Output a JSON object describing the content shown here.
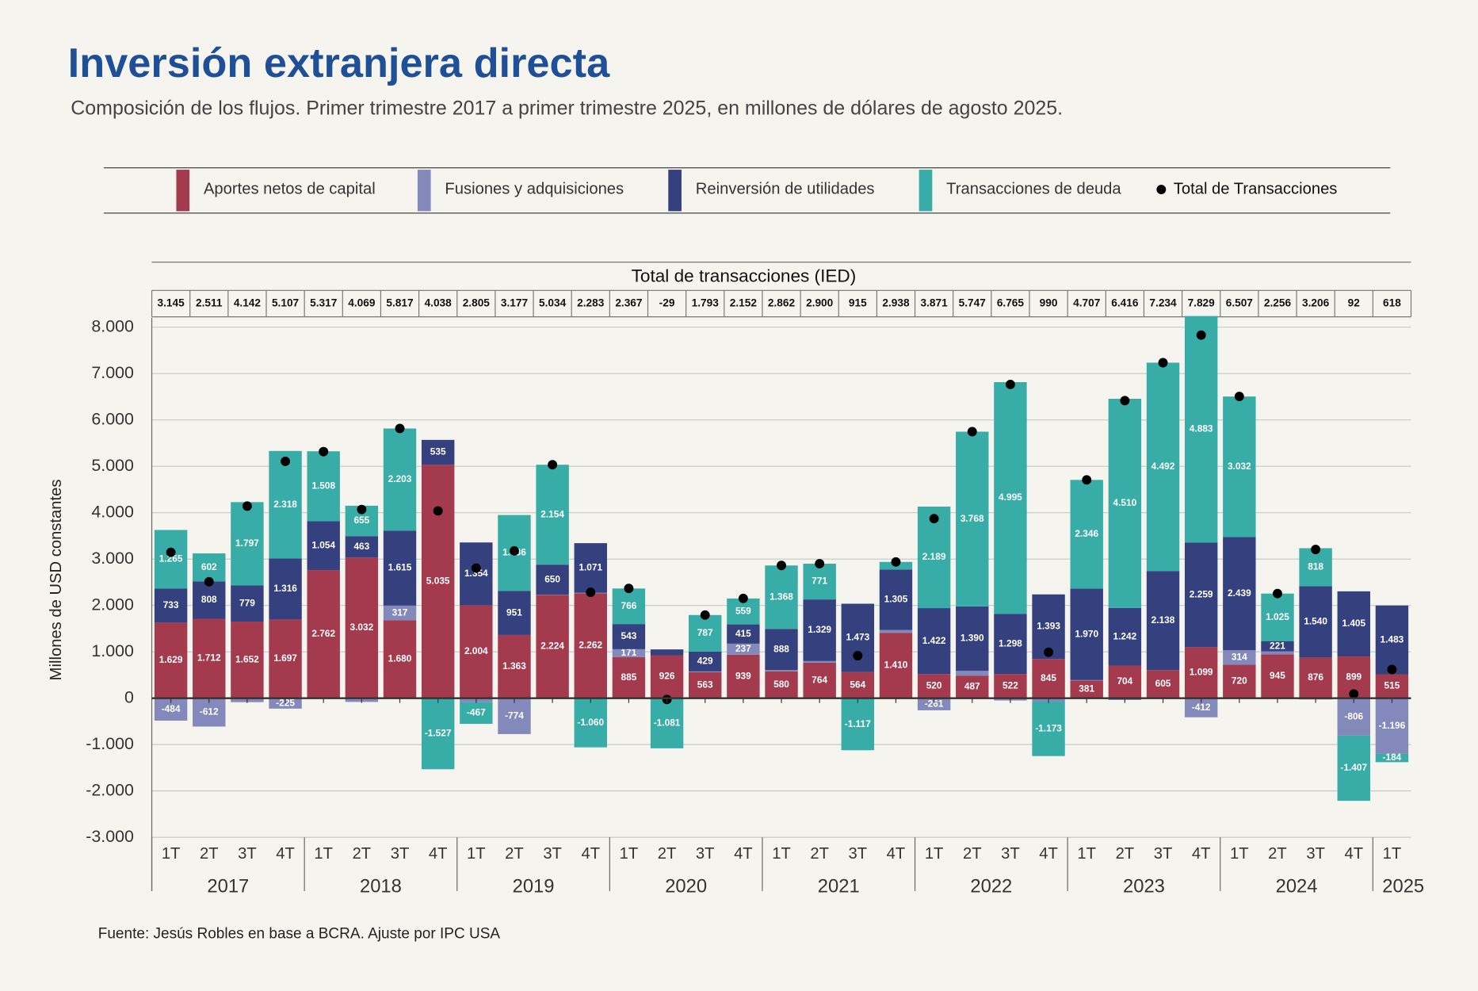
{
  "chart_data": {
    "type": "stacked-bar",
    "title": "Inversión extranjera directa",
    "subtitle": "Composición de los flujos. Primer trimestre 2017 a primer trimestre 2025, en millones de dólares de agosto 2025.",
    "y_label": "Millones de USD constantes",
    "table_title": "Total de transacciones (IED)",
    "source": "Fuente: Jesús Robles en base a BCRA. Ajuste por IPC USA",
    "categories": [
      "1T",
      "2T",
      "3T",
      "4T",
      "1T",
      "2T",
      "3T",
      "4T",
      "1T",
      "2T",
      "3T",
      "4T",
      "1T",
      "2T",
      "3T",
      "4T",
      "1T",
      "2T",
      "3T",
      "4T",
      "1T",
      "2T",
      "3T",
      "4T",
      "1T",
      "2T",
      "3T",
      "4T",
      "1T",
      "2T",
      "3T",
      "4T",
      "1T"
    ],
    "years": [
      "2017",
      null,
      null,
      null,
      "2018",
      null,
      null,
      null,
      "2019",
      null,
      null,
      null,
      "2020",
      null,
      null,
      null,
      "2021",
      null,
      null,
      null,
      "2022",
      null,
      null,
      null,
      "2023",
      null,
      null,
      null,
      "2024",
      null,
      null,
      null,
      "2025"
    ],
    "ylim": [
      -3000,
      8000
    ],
    "yticks": [
      {
        "value": -3000,
        "label": "-3.000"
      },
      {
        "value": -2000,
        "label": "-2.000"
      },
      {
        "value": -1000,
        "label": "-1.000"
      },
      0,
      {
        "value": 1000,
        "label": "1.000"
      },
      {
        "value": 2000,
        "label": "2.000"
      },
      {
        "value": 3000,
        "label": "3.000"
      },
      {
        "value": 4000,
        "label": "4.000"
      },
      {
        "value": 5000,
        "label": "5.000"
      },
      {
        "value": 6000,
        "label": "6.000"
      },
      {
        "value": 7000,
        "label": "7.000"
      },
      {
        "value": 8000,
        "label": "8.000"
      }
    ],
    "grid": true,
    "series": [
      {
        "name": "Aportes netos de capital",
        "color": "#a33a4e",
        "values": [
          1629,
          1712,
          1652,
          1697,
          2762,
          3032,
          1680,
          5035,
          2004,
          1363,
          2224,
          2262,
          885,
          926,
          563,
          939,
          580,
          764,
          564,
          1410,
          520,
          487,
          522,
          845,
          381,
          704,
          605,
          1099,
          720,
          945,
          876,
          899,
          515
        ],
        "value_labels": [
          "1.629",
          "1.712",
          "1.652",
          "1.697",
          "2.762",
          "3.032",
          "1.680",
          "5.035",
          "2.004",
          "1.363",
          "2.224",
          "2.262",
          "885",
          "926",
          "563",
          "939",
          "580",
          "764",
          "564",
          "1.410",
          "520",
          "487",
          "522",
          "845",
          "381",
          "704",
          "605",
          "1.099",
          "720",
          "945",
          "876",
          "899",
          "515"
        ]
      },
      {
        "name": "Fusiones y adquisiciones",
        "color": "#8389bb",
        "values": [
          -484,
          -612,
          -86,
          -225,
          -7,
          -81,
          317,
          -5,
          -86,
          -774,
          6,
          10,
          171,
          0,
          14,
          237,
          26,
          36,
          -5,
          60,
          -261,
          102,
          -50,
          -75,
          10,
          -40,
          -1,
          -412,
          314,
          65,
          -28,
          -806,
          -1196
        ],
        "value_labels": [
          "-484",
          "-612",
          null,
          "-225",
          null,
          null,
          "317",
          null,
          null,
          "-774",
          null,
          null,
          "171",
          null,
          null,
          "237",
          null,
          null,
          null,
          null,
          "-261",
          null,
          null,
          null,
          null,
          null,
          null,
          "-412",
          "314",
          null,
          null,
          "-806",
          "-1.196"
        ]
      },
      {
        "name": "Reinversión de utilidades",
        "color": "#35407f",
        "values": [
          733,
          808,
          779,
          1316,
          1054,
          463,
          1615,
          535,
          1354,
          951,
          650,
          1071,
          543,
          126,
          429,
          415,
          888,
          1329,
          1473,
          1305,
          1422,
          1390,
          1298,
          1393,
          1970,
          1242,
          2138,
          2259,
          2439,
          221,
          1540,
          1405,
          1483
        ],
        "value_labels": [
          "733",
          "808",
          "779",
          "1.316",
          "1.054",
          "463",
          "1.615",
          "535",
          "1.354",
          "951",
          "650",
          "1.071",
          "543",
          null,
          "429",
          "415",
          "888",
          "1.329",
          "1.473",
          "1.305",
          "1.422",
          "1.390",
          "1.298",
          "1.393",
          "1.970",
          "1.242",
          "2.138",
          "2.259",
          "2.439",
          "221",
          "1.540",
          "1.405",
          "1.483"
        ]
      },
      {
        "name": "Transacciones de deuda",
        "color": "#38aca7",
        "values": [
          1265,
          602,
          1797,
          2318,
          1508,
          655,
          2203,
          -1527,
          -467,
          1636,
          2154,
          -1060,
          766,
          -1081,
          787,
          559,
          1368,
          771,
          -1117,
          163,
          2189,
          3768,
          4995,
          -1173,
          2346,
          4510,
          4492,
          4883,
          3032,
          1025,
          818,
          -1407,
          -184
        ],
        "value_labels": [
          "1.265",
          "602",
          "1.797",
          "2.318",
          "1.508",
          "655",
          "2.203",
          "-1.527",
          "-467",
          "1.636",
          "2.154",
          "-1.060",
          "766",
          "-1.081",
          "787",
          "559",
          "1.368",
          "771",
          "-1.117",
          null,
          "2.189",
          "3.768",
          "4.995",
          "-1.173",
          "2.346",
          "4.510",
          "4.492",
          "4.883",
          "3.032",
          "1.025",
          "818",
          "-1.407",
          "-184"
        ]
      }
    ],
    "total": {
      "name": "Total de Transacciones",
      "color": "#000000",
      "values": [
        3145,
        2511,
        4142,
        5107,
        5317,
        4069,
        5817,
        4038,
        2805,
        3177,
        5034,
        2283,
        2367,
        -29,
        1793,
        2152,
        2862,
        2900,
        915,
        2938,
        3871,
        5747,
        6765,
        990,
        4707,
        6416,
        7234,
        7829,
        6507,
        2256,
        3206,
        92,
        618
      ],
      "value_labels": [
        "3.145",
        "2.511",
        "4.142",
        "5.107",
        "5.317",
        "4.069",
        "5.817",
        "4.038",
        "2.805",
        "3.177",
        "5.034",
        "2.283",
        "2.367",
        "-29",
        "1.793",
        "2.152",
        "2.862",
        "2.900",
        "915",
        "2.938",
        "3.871",
        "5.747",
        "6.765",
        "990",
        "4.707",
        "6.416",
        "7.234",
        "7.829",
        "6.507",
        "2.256",
        "3.206",
        "92",
        "618"
      ]
    }
  }
}
